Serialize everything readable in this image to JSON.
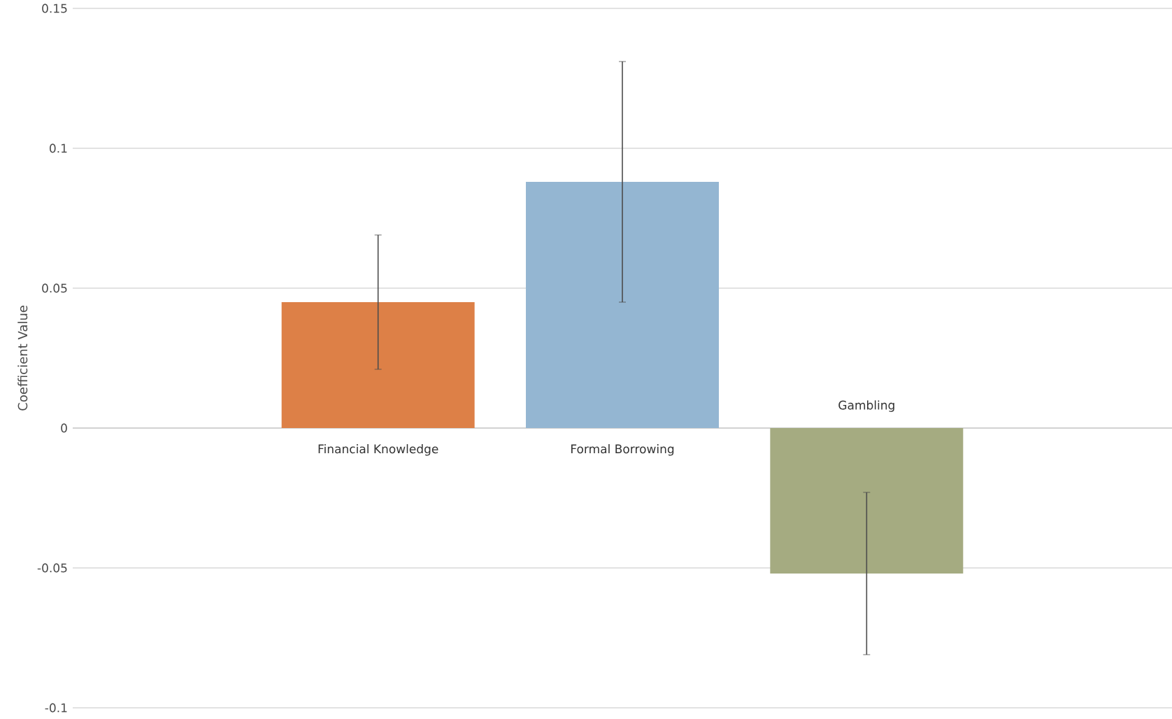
{
  "chart_data": {
    "type": "bar",
    "ylabel": "Coefficient Value",
    "categories": [
      "Financial Knowledge",
      "Formal Borrowing",
      "Gambling"
    ],
    "values": [
      0.045,
      0.088,
      -0.052
    ],
    "colors": [
      "#dd8047",
      "#94b6d2",
      "#a5ab81"
    ],
    "errors": [
      [
        0.021,
        0.069
      ],
      [
        0.045,
        0.131
      ],
      [
        -0.081,
        -0.023
      ]
    ],
    "ylim": [
      -0.1,
      0.15
    ],
    "yticks": [
      -0.1,
      -0.05,
      0,
      0.05,
      0.1,
      0.15
    ],
    "grid": "y"
  }
}
